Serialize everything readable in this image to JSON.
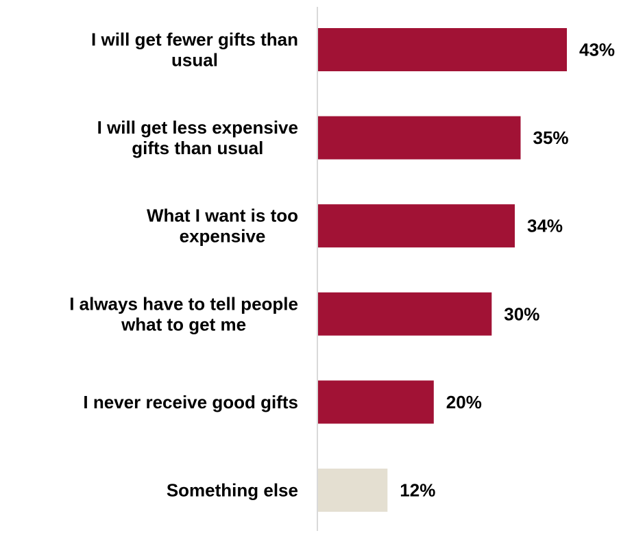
{
  "chart_data": {
    "type": "bar",
    "orientation": "horizontal",
    "categories": [
      [
        "I will get fewer gifts than",
        "usual"
      ],
      [
        "I will get less expensive",
        "gifts than usual"
      ],
      [
        "What I want is too",
        "expensive"
      ],
      [
        "I always have to tell people",
        "what to get me"
      ],
      [
        "I never receive good gifts"
      ],
      [
        "Something else"
      ]
    ],
    "values": [
      43,
      35,
      34,
      30,
      20,
      12
    ],
    "value_labels": [
      "43%",
      "35%",
      "34%",
      "30%",
      "20%",
      "12%"
    ],
    "bar_colors": [
      "#a11235",
      "#a11235",
      "#a11235",
      "#a11235",
      "#a11235",
      "#e4dfd1"
    ],
    "axis_color": "#d9d9d9",
    "xlim": [
      0,
      47
    ],
    "grid": false,
    "legend": "none"
  }
}
